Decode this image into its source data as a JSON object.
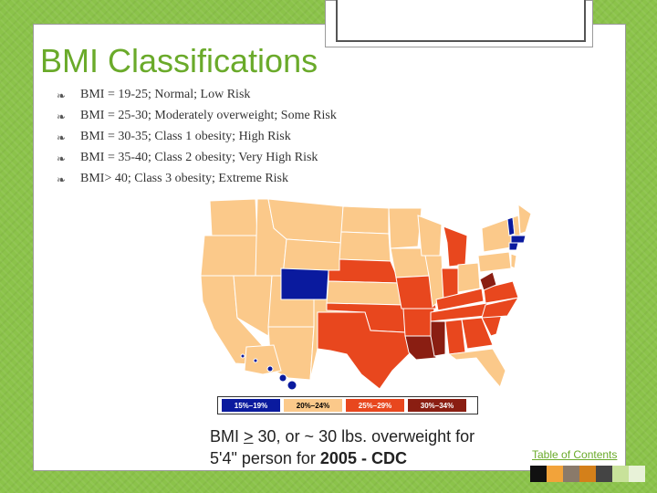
{
  "slide": {
    "title": "BMI Classifications",
    "bullets": [
      "BMI = 19-25; Normal; Low Risk",
      "BMI = 25-30; Moderately overweight; Some Risk",
      "BMI = 30-35; Class 1 obesity; High Risk",
      "BMI = 35-40; Class 2 obesity; Very High Risk",
      "BMI> 40; Class 3 obesity; Extreme Risk"
    ],
    "caption": {
      "part1": "BMI ",
      "underlined": ">",
      "part2": " 30, or ~ 30 lbs. overweight for",
      "part3": "5'4\" person for ",
      "bold": "2005 - CDC"
    },
    "toc_link": "Table of Contents"
  },
  "map_legend": [
    {
      "label": "15%–19%",
      "color": "#0a1a9e",
      "text_color": "#ffffff"
    },
    {
      "label": "20%–24%",
      "color": "#fbc98a",
      "text_color": "#000000"
    },
    {
      "label": "25%–29%",
      "color": "#e8471e",
      "text_color": "#ffffff"
    },
    {
      "label": "30%–34%",
      "color": "#8a1e12",
      "text_color": "#ffffff"
    }
  ],
  "colors": {
    "background": "#8bc34a",
    "title": "#6aaa2a",
    "swatches": [
      "#111111",
      "#f2a33a",
      "#8a7a6a",
      "#d4801a",
      "#444444",
      "#c8e29a",
      "#e8f2d8"
    ]
  }
}
